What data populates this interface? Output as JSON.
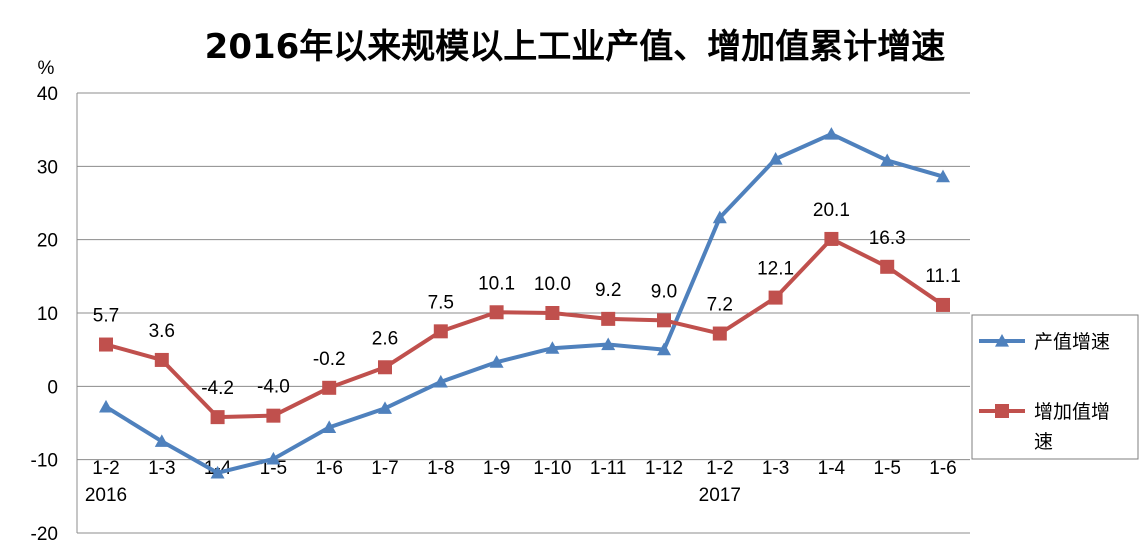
{
  "chart_data": {
    "type": "line",
    "title": "2016年以来规模以上工业产值、增加值累计增速",
    "ylabel": "%",
    "xlabel": "",
    "ylim": [
      -20,
      40
    ],
    "yticks": [
      -20,
      -10,
      0,
      10,
      20,
      30,
      40
    ],
    "grid": true,
    "legend_position": "right",
    "categories": [
      "1-2",
      "1-3",
      "1-4",
      "1-5",
      "1-6",
      "1-7",
      "1-8",
      "1-9",
      "1-10",
      "1-11",
      "1-12",
      "1-2",
      "1-3",
      "1-4",
      "1-5",
      "1-6"
    ],
    "year_labels": [
      {
        "index": 0,
        "text": "2016"
      },
      {
        "index": 11,
        "text": "2017"
      }
    ],
    "series": [
      {
        "name": "产值增速",
        "color": "#4F81BD",
        "marker": "triangle",
        "values": [
          -2.8,
          -7.5,
          -11.8,
          -9.9,
          -5.6,
          -3.0,
          0.6,
          3.3,
          5.2,
          5.7,
          5.0,
          23.0,
          31.0,
          34.4,
          30.8,
          28.6
        ],
        "show_labels": false
      },
      {
        "name": "增加值增速",
        "color": "#C0504D",
        "marker": "square",
        "values": [
          5.7,
          3.6,
          -4.2,
          -4.0,
          -0.2,
          2.6,
          7.5,
          10.1,
          10.0,
          9.2,
          9.0,
          7.2,
          12.1,
          20.1,
          16.3,
          11.1
        ],
        "labels": [
          "5.7",
          "3.6",
          "-4.2",
          "-4.0",
          "-0.2",
          "2.6",
          "7.5",
          "10.1",
          "10.0",
          "9.2",
          "9.0",
          "7.2",
          "12.1",
          "20.1",
          "16.3",
          "11.1"
        ],
        "show_labels": true
      }
    ]
  }
}
